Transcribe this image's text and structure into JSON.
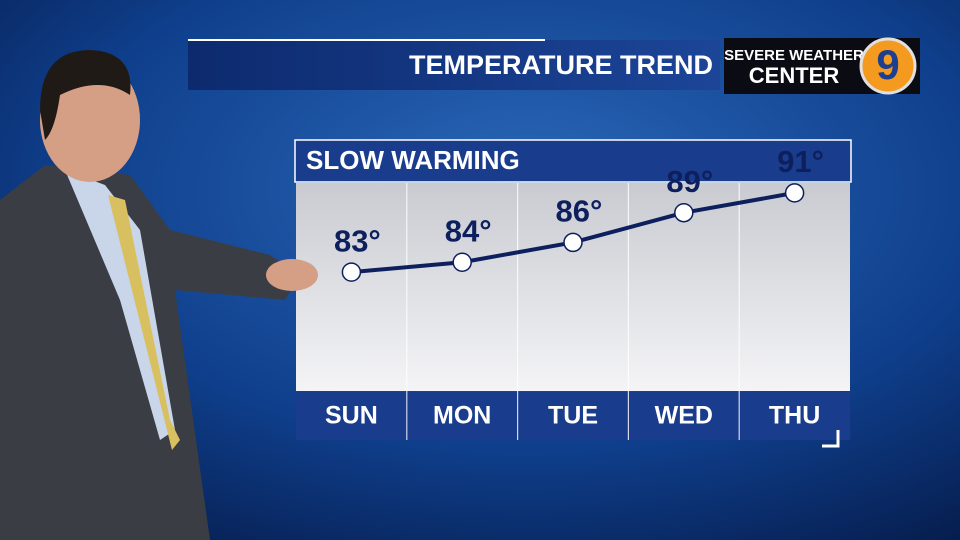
{
  "chart_data": {
    "type": "line",
    "title": "TEMPERATURE TREND",
    "subtitle": "SLOW WARMING",
    "logo": {
      "top": "SEVERE WEATHER",
      "bottom": "CENTER",
      "number": "9"
    },
    "categories": [
      "SUN",
      "MON",
      "TUE",
      "WED",
      "THU"
    ],
    "values": [
      83,
      84,
      86,
      89,
      91
    ],
    "value_labels": [
      "83°",
      "84°",
      "86°",
      "89°",
      "91°"
    ],
    "color": "#0e1f5e",
    "ylim": [
      71,
      92
    ]
  }
}
